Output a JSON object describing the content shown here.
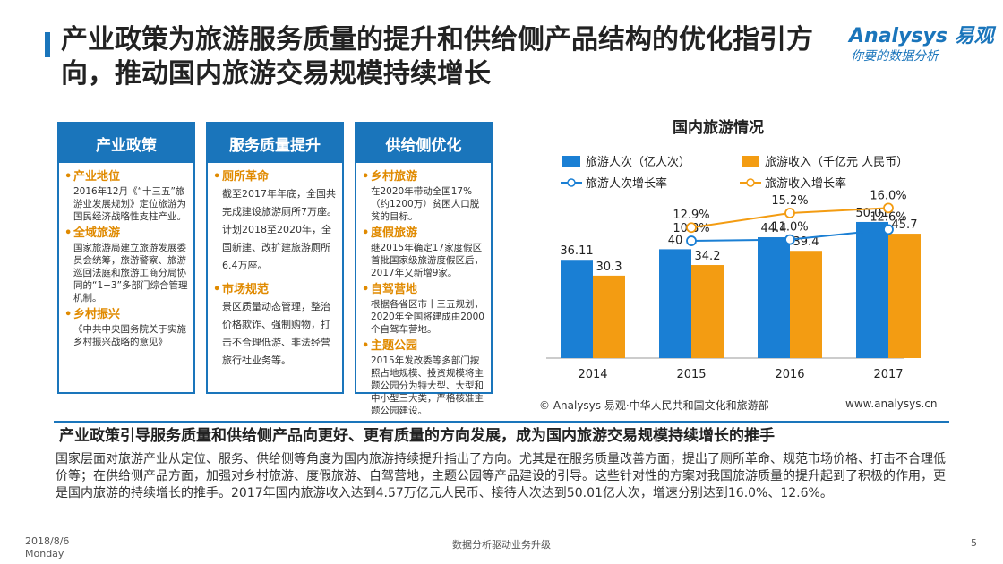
{
  "header": {
    "title_line1": "产业政策为旅游服务质量的提升和供给侧产品结构的优化指引方",
    "title_line2": "向，推动国内旅游交易规模持续增长",
    "logo_main": "Analysys",
    "logo_cn": "易观",
    "logo_sub": "你要的数据分析"
  },
  "columns": [
    {
      "header": "产业政策",
      "items": [
        {
          "title": "产业地位",
          "text": "2016年12月《“十三五”旅游业发展规划》定位旅游为国民经济战略性支柱产业。"
        },
        {
          "title": "全域旅游",
          "text": "国家旅游局建立旅游发展委员会统筹，旅游警察、旅游巡回法庭和旅游工商分局协同的“1+3”多部门综合管理机制。"
        },
        {
          "title": "乡村振兴",
          "text": "《中共中央国务院关于实施乡村振兴战略的意见》"
        }
      ]
    },
    {
      "header": "服务质量提升",
      "items": [
        {
          "title": "厕所革命",
          "text": "截至2017年年底，全国共完成建设旅游厕所7万座。计划2018至2020年，全国新建、改扩建旅游厕所6.4万座。"
        },
        {
          "title": "市场规范",
          "text": "景区质量动态管理，整治价格欺诈、强制购物，打击不合理低游、非法经营旅行社业务等。"
        }
      ]
    },
    {
      "header": "供给侧优化",
      "items": [
        {
          "title": "乡村旅游",
          "text": "在2020年带动全国17%（约1200万）贫困人口脱贫的目标。"
        },
        {
          "title": "度假旅游",
          "text": "继2015年确定17家度假区首批国家级旅游度假区后，2017年又新增9家。"
        },
        {
          "title": "自驾营地",
          "text": "根据各省区市十三五规划，2020年全国将建成由2000个自驾车营地。"
        },
        {
          "title": "主题公园",
          "text": "2015年发改委等多部门按照占地规模、投资规模将主题公园分为特大型、大型和中小型三大类，严格核准主题公园建设。"
        }
      ]
    }
  ],
  "chart_data": {
    "type": "bar",
    "title": "国内旅游情况",
    "categories": [
      "2014",
      "2015",
      "2016",
      "2017"
    ],
    "series": [
      {
        "name": "旅游人次（亿人次）",
        "kind": "bar",
        "color": "#1a7fd4",
        "values": [
          36.11,
          40,
          44.4,
          50.01
        ]
      },
      {
        "name": "旅游收入（千亿元 人民币）",
        "kind": "bar",
        "color": "#f39c12",
        "values": [
          30.3,
          34.2,
          39.4,
          45.7
        ]
      },
      {
        "name": "旅游人次增长率",
        "kind": "line",
        "color": "#1a7fd4",
        "values": [
          null,
          10.8,
          11.0,
          12.6
        ],
        "labels": [
          "",
          "10.8%",
          "11.0%",
          "12.6%"
        ]
      },
      {
        "name": "旅游收入增长率",
        "kind": "line",
        "color": "#f39c12",
        "values": [
          null,
          12.9,
          15.2,
          16.0
        ],
        "labels": [
          "",
          "12.9%",
          "15.2%",
          "16.0%"
        ]
      }
    ],
    "bar_labels": [
      [
        "36.11",
        "40",
        "44.4",
        "50.01"
      ],
      [
        "30.3",
        "34.2",
        "39.4",
        "45.7"
      ]
    ],
    "bar_ylim": [
      0,
      100
    ],
    "line_ylim": [
      0,
      20
    ],
    "legend": "top"
  },
  "chart_source": "© Analysys 易观·中华人民共和国文化和旅游部",
  "chart_site": "www.analysys.cn",
  "summary": {
    "title": "产业政策引导服务质量和供给侧产品向更好、更有质量的方向发展，成为国内旅游交易规模持续增长的推手",
    "text": "国家层面对旅游产业从定位、服务、供给侧等角度为国内旅游持续提升指出了方向。尤其是在服务质量改善方面，提出了厕所革命、规范市场价格、打击不合理低价等；在供给侧产品方面，加强对乡村旅游、度假旅游、自驾营地，主题公园等产品建设的引导。这些针对性的方案对我国旅游质量的提升起到了积极的作用，更是国内旅游的持续增长的推手。2017年国内旅游收入达到4.57万亿元人民币、接待人次达到50.01亿人次，增速分别达到16.0%、12.6%。"
  },
  "footer": {
    "date": "2018/8/6",
    "weekday": "Monday",
    "center": "数据分析驱动业务升级",
    "page": "5"
  }
}
